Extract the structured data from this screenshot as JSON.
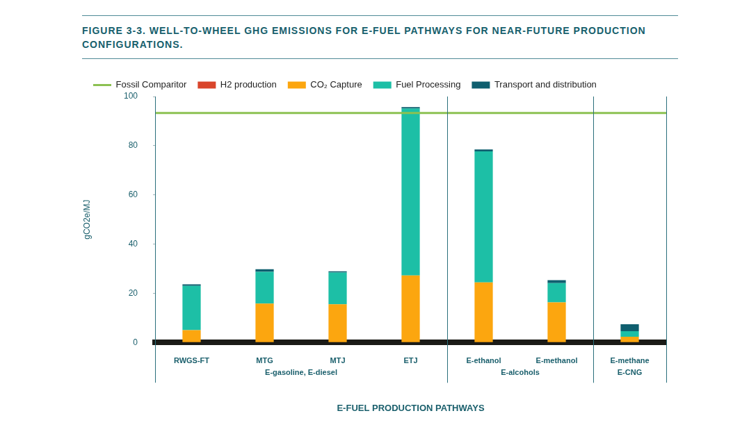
{
  "chart_data": {
    "type": "bar",
    "title": "FIGURE 3-3. WELL-TO-WHEEL GHG EMISSIONS FOR E-FUEL PATHWAYS FOR NEAR-FUTURE PRODUCTION CONFIGURATIONS.",
    "x_label": "E-FUEL PRODUCTION PATHWAYS",
    "y_label": "gCO2e/MJ",
    "categories": [
      "RWGS-FT",
      "MTG",
      "MTJ",
      "ETJ",
      "E-ethanol",
      "E-methanol",
      "E-methane"
    ],
    "groups": [
      {
        "label": "E-gasoline, E-diesel",
        "categories": [
          "RWGS-FT",
          "MTG",
          "MTJ",
          "ETJ"
        ]
      },
      {
        "label": "E-alcohols",
        "categories": [
          "E-ethanol",
          "E-methanol"
        ]
      },
      {
        "label": "E-CNG",
        "categories": [
          "E-methane"
        ]
      }
    ],
    "series": [
      {
        "name": "H2 production",
        "color": "#d9452b",
        "values": [
          0,
          0,
          0,
          0,
          0,
          0,
          0
        ]
      },
      {
        "name": "CO₂ Capture",
        "color": "#fca60f",
        "values": [
          5,
          15.8,
          15.5,
          27.2,
          24.4,
          16.3,
          2.3
        ]
      },
      {
        "name": "Fuel Processing",
        "color": "#1dbfa6",
        "values": [
          18,
          12.9,
          12.9,
          67.9,
          53.3,
          7.8,
          2.3
        ]
      },
      {
        "name": "Transport and distribution",
        "color": "#0f5f6f",
        "values": [
          0.6,
          1.1,
          0.5,
          0.6,
          0.8,
          1.2,
          2.8
        ]
      },
      {
        "name": "Fossil Comparitor",
        "color": "#8cc152",
        "type": "line",
        "values": [
          93.3,
          93.3,
          93.3,
          93.3,
          93.3,
          93.3,
          93.3
        ]
      }
    ],
    "stacked": true,
    "ylim": [
      0,
      100
    ],
    "yticks": [
      0,
      20,
      40,
      60,
      80,
      100
    ],
    "grid": false,
    "legend": "top-left"
  }
}
